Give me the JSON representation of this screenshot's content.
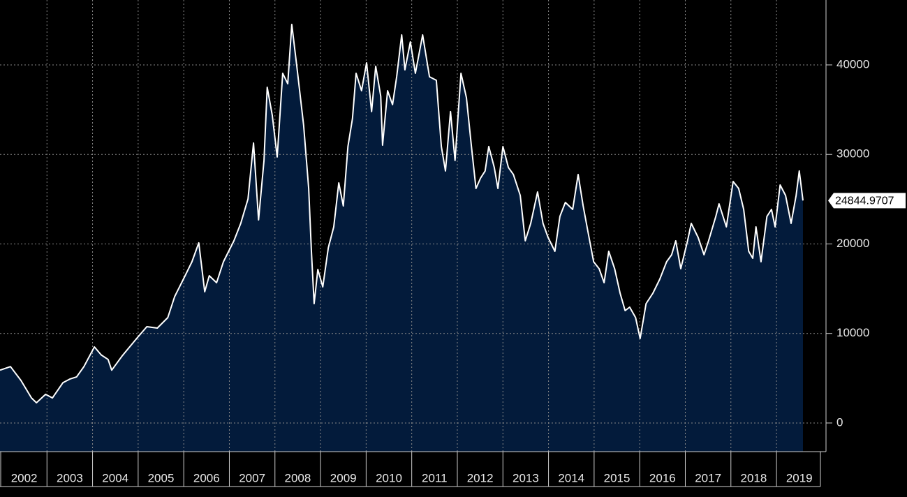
{
  "chart_data": {
    "type": "area",
    "categories": [
      "2002",
      "2003",
      "2004",
      "2005",
      "2006",
      "2007",
      "2008",
      "2009",
      "2010",
      "2011",
      "2012",
      "2013",
      "2014",
      "2015",
      "2016",
      "2017",
      "2018",
      "2019"
    ],
    "x": [
      2001.97,
      2002.2,
      2002.43,
      2002.66,
      2002.77,
      2002.97,
      2003.12,
      2003.35,
      2003.5,
      2003.65,
      2003.81,
      2004.04,
      2004.19,
      2004.34,
      2004.42,
      2004.65,
      2004.96,
      2005.19,
      2005.42,
      2005.65,
      2005.8,
      2006.03,
      2006.18,
      2006.33,
      2006.46,
      2006.56,
      2006.72,
      2006.87,
      2007.1,
      2007.25,
      2007.41,
      2007.53,
      2007.64,
      2007.76,
      2007.83,
      2007.94,
      2008.05,
      2008.17,
      2008.28,
      2008.37,
      2008.48,
      2008.63,
      2008.74,
      2008.8,
      2008.86,
      2008.94,
      2009.05,
      2009.17,
      2009.29,
      2009.4,
      2009.5,
      2009.6,
      2009.7,
      2009.78,
      2009.9,
      2010.01,
      2010.12,
      2010.21,
      2010.32,
      2010.36,
      2010.47,
      2010.58,
      2010.67,
      2010.78,
      2010.85,
      2010.97,
      2011.08,
      2011.24,
      2011.39,
      2011.54,
      2011.65,
      2011.74,
      2011.85,
      2011.95,
      2012.08,
      2012.2,
      2012.31,
      2012.41,
      2012.51,
      2012.61,
      2012.69,
      2012.81,
      2012.89,
      2013.0,
      2013.12,
      2013.23,
      2013.38,
      2013.49,
      2013.61,
      2013.76,
      2013.88,
      2013.99,
      2014.14,
      2014.25,
      2014.37,
      2014.53,
      2014.65,
      2014.76,
      2014.86,
      2014.99,
      2015.11,
      2015.22,
      2015.32,
      2015.45,
      2015.57,
      2015.68,
      2015.78,
      2015.91,
      2016.01,
      2016.14,
      2016.29,
      2016.44,
      2016.59,
      2016.7,
      2016.79,
      2016.9,
      2017.05,
      2017.13,
      2017.28,
      2017.41,
      2017.51,
      2017.67,
      2017.74,
      2017.9,
      2018.05,
      2018.17,
      2018.28,
      2018.39,
      2018.48,
      2018.55,
      2018.66,
      2018.79,
      2018.89,
      2018.97,
      2019.08,
      2019.2,
      2019.32,
      2019.43,
      2019.5,
      2019.58
    ],
    "series": [
      {
        "color": "#ffffff",
        "fill": "#031b3b",
        "values": [
          5900,
          6300,
          4750,
          2800,
          2260,
          3200,
          2800,
          4500,
          4900,
          5150,
          6300,
          8500,
          7600,
          7100,
          5900,
          7500,
          9400,
          10760,
          10600,
          11770,
          14110,
          16450,
          18010,
          20120,
          14660,
          16450,
          15670,
          18010,
          20350,
          22300,
          25030,
          31270,
          22690,
          29320,
          37500,
          34390,
          29710,
          39060,
          37890,
          44520,
          39840,
          33220,
          26200,
          19180,
          13330,
          17150,
          15200,
          19570,
          21910,
          26820,
          24250,
          30880,
          34000,
          39060,
          37110,
          40230,
          34780,
          39840,
          36500,
          31030,
          37110,
          35560,
          38670,
          43350,
          39450,
          42570,
          39060,
          43350,
          38670,
          38280,
          30880,
          28150,
          34780,
          29320,
          39060,
          36340,
          30880,
          26200,
          27370,
          28150,
          30880,
          28540,
          26200,
          30880,
          28540,
          27760,
          25420,
          20350,
          22300,
          25810,
          22300,
          20740,
          19180,
          23080,
          24640,
          23860,
          27760,
          24250,
          21520,
          18010,
          17230,
          15670,
          19180,
          17230,
          14500,
          12550,
          12940,
          11770,
          9430,
          13330,
          14500,
          16060,
          18010,
          18790,
          20350,
          17230,
          20350,
          22300,
          20740,
          18790,
          20350,
          23080,
          24480,
          21910,
          26980,
          26200,
          23860,
          19180,
          18400,
          21910,
          18010,
          23080,
          23860,
          21910,
          26590,
          25420,
          22300,
          25420,
          28150,
          24844.9707
        ]
      }
    ],
    "xlim": [
      2001.97,
      2020.04
    ],
    "xticks": [
      2003,
      2004,
      2005,
      2006,
      2007,
      2008,
      2009,
      2010,
      2011,
      2012,
      2013,
      2014,
      2015,
      2016,
      2017,
      2018,
      2019
    ],
    "ylim": [
      -3200,
      47250
    ],
    "yticks": [
      0,
      10000,
      20000,
      30000,
      40000
    ],
    "grid": true
  }
}
